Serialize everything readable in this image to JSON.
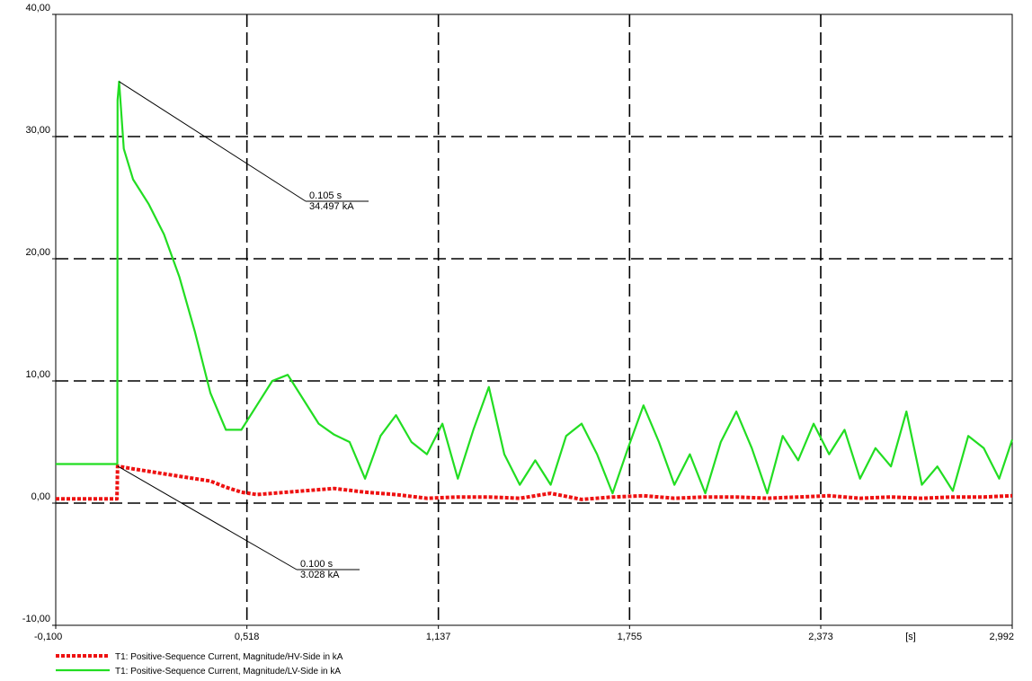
{
  "chart_data": {
    "type": "line",
    "title": "",
    "xlabel": "",
    "ylabel": "",
    "x_unit_label": "[s]",
    "xlim": [
      -0.1,
      2.992
    ],
    "ylim": [
      -10,
      40
    ],
    "grid": true,
    "legend_position": "bottom-left",
    "x_ticks": [
      {
        "value": -0.1,
        "label": "-0,100"
      },
      {
        "value": 0.518,
        "label": "0,518"
      },
      {
        "value": 1.137,
        "label": "1,137"
      },
      {
        "value": 1.755,
        "label": "1,755"
      },
      {
        "value": 2.373,
        "label": "2,373"
      },
      {
        "value": 2.992,
        "label": "2,992"
      }
    ],
    "y_ticks": [
      {
        "value": -10,
        "label": "-10,00"
      },
      {
        "value": 0,
        "label": "0,00"
      },
      {
        "value": 10,
        "label": "10,00"
      },
      {
        "value": 20,
        "label": "20,00"
      },
      {
        "value": 30,
        "label": "30,00"
      },
      {
        "value": 40,
        "label": "40,00"
      }
    ],
    "series": [
      {
        "name": "T1: Positive-Sequence Current, Magnitude/HV-Side in kA",
        "color": "#ee1111",
        "style": "dotted",
        "x": [
          -0.1,
          0.098,
          0.1,
          0.15,
          0.2,
          0.25,
          0.3,
          0.35,
          0.4,
          0.45,
          0.5,
          0.55,
          0.6,
          0.7,
          0.8,
          0.9,
          1.0,
          1.1,
          1.2,
          1.3,
          1.4,
          1.5,
          1.6,
          1.7,
          1.8,
          1.9,
          2.0,
          2.1,
          2.2,
          2.3,
          2.4,
          2.5,
          2.6,
          2.7,
          2.8,
          2.9,
          2.992
        ],
        "y": [
          0.35,
          0.35,
          3.028,
          2.8,
          2.6,
          2.4,
          2.2,
          2.0,
          1.8,
          1.3,
          0.9,
          0.7,
          0.8,
          1.0,
          1.2,
          0.9,
          0.7,
          0.4,
          0.5,
          0.5,
          0.4,
          0.8,
          0.3,
          0.5,
          0.6,
          0.4,
          0.5,
          0.5,
          0.4,
          0.5,
          0.6,
          0.4,
          0.5,
          0.4,
          0.5,
          0.5,
          0.6
        ]
      },
      {
        "name": "T1: Positive-Sequence Current, Magnitude/LV-Side in kA",
        "color": "#22dd22",
        "style": "solid",
        "x": [
          -0.1,
          0.099,
          0.1,
          0.105,
          0.12,
          0.15,
          0.2,
          0.25,
          0.3,
          0.35,
          0.4,
          0.45,
          0.5,
          0.55,
          0.6,
          0.65,
          0.7,
          0.75,
          0.8,
          0.85,
          0.9,
          0.95,
          1.0,
          1.05,
          1.1,
          1.15,
          1.2,
          1.25,
          1.3,
          1.35,
          1.4,
          1.45,
          1.5,
          1.55,
          1.6,
          1.65,
          1.7,
          1.75,
          1.8,
          1.85,
          1.9,
          1.95,
          2.0,
          2.05,
          2.1,
          2.15,
          2.2,
          2.25,
          2.3,
          2.35,
          2.4,
          2.45,
          2.5,
          2.55,
          2.6,
          2.65,
          2.7,
          2.75,
          2.8,
          2.85,
          2.9,
          2.95,
          2.992
        ],
        "y": [
          3.2,
          3.2,
          33.0,
          34.497,
          29.0,
          26.5,
          24.5,
          22.0,
          18.5,
          14.0,
          9.0,
          6.0,
          6.0,
          8.0,
          10.0,
          10.5,
          8.5,
          6.5,
          5.6,
          5.0,
          2.0,
          5.5,
          7.2,
          5.0,
          4.0,
          6.5,
          2.0,
          6.0,
          9.5,
          4.0,
          1.5,
          3.5,
          1.5,
          5.5,
          6.5,
          4.0,
          0.8,
          4.5,
          8.0,
          5.0,
          1.5,
          4.0,
          0.8,
          5.0,
          7.5,
          4.5,
          0.8,
          5.5,
          3.5,
          6.5,
          4.0,
          6.0,
          2.0,
          4.5,
          3.0,
          7.5,
          1.5,
          3.0,
          1.0,
          5.5,
          4.5,
          2.0,
          5.2
        ]
      }
    ],
    "annotations": [
      {
        "x": 0.105,
        "y": 34.497,
        "line1": "0.105 s",
        "line2": "34.497 kA"
      },
      {
        "x": 0.1,
        "y": 3.028,
        "line1": "0.100 s",
        "line2": "3.028 kA"
      }
    ]
  }
}
